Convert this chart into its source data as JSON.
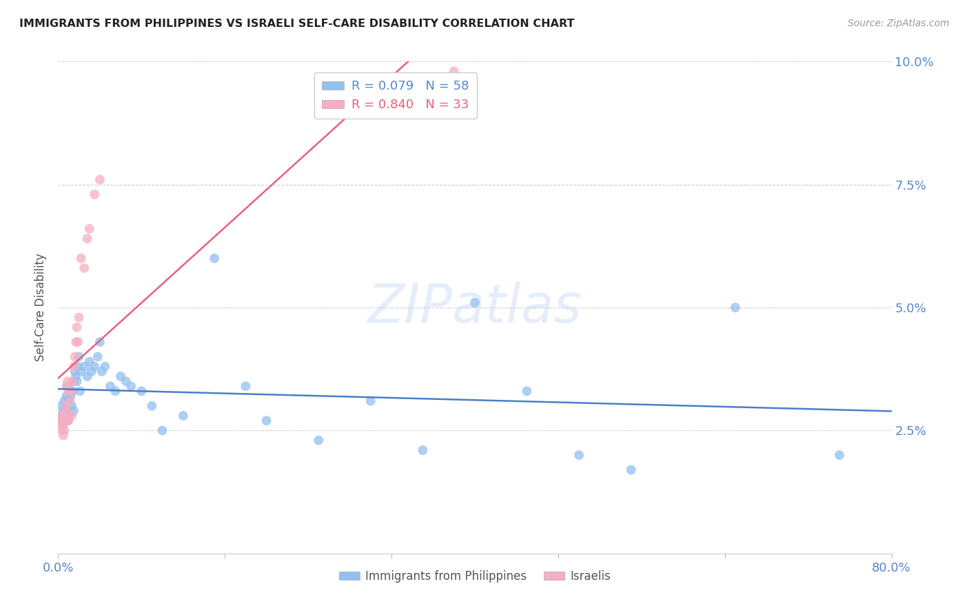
{
  "title": "IMMIGRANTS FROM PHILIPPINES VS ISRAELI SELF-CARE DISABILITY CORRELATION CHART",
  "source": "Source: ZipAtlas.com",
  "ylabel_label": "Self-Care Disability",
  "x_min": 0.0,
  "x_max": 0.8,
  "y_min": 0.0,
  "y_max": 0.1,
  "y_ticks": [
    0.0,
    0.025,
    0.05,
    0.075,
    0.1
  ],
  "x_ticks": [
    0.0,
    0.16,
    0.32,
    0.48,
    0.64,
    0.8
  ],
  "philippines_color": "#92c0f0",
  "israelis_color": "#f7aec0",
  "philippines_line_color": "#4a7ec8",
  "israelis_line_color": "#e8607a",
  "legend_philippines_r": "R = 0.079",
  "legend_philippines_n": "N = 58",
  "legend_israelis_r": "R = 0.840",
  "legend_israelis_n": "N = 33",
  "background_color": "#ffffff",
  "watermark": "ZIPatlas",
  "philippines_x": [
    0.002,
    0.003,
    0.004,
    0.005,
    0.005,
    0.006,
    0.006,
    0.007,
    0.007,
    0.008,
    0.008,
    0.009,
    0.009,
    0.01,
    0.01,
    0.011,
    0.012,
    0.013,
    0.014,
    0.015,
    0.015,
    0.016,
    0.017,
    0.018,
    0.019,
    0.02,
    0.021,
    0.022,
    0.025,
    0.028,
    0.03,
    0.032,
    0.035,
    0.038,
    0.04,
    0.042,
    0.045,
    0.05,
    0.055,
    0.06,
    0.065,
    0.07,
    0.08,
    0.09,
    0.1,
    0.12,
    0.15,
    0.18,
    0.2,
    0.25,
    0.3,
    0.35,
    0.4,
    0.45,
    0.5,
    0.55,
    0.65,
    0.75
  ],
  "philippines_y": [
    0.028,
    0.03,
    0.027,
    0.029,
    0.026,
    0.031,
    0.028,
    0.03,
    0.027,
    0.032,
    0.029,
    0.034,
    0.027,
    0.031,
    0.028,
    0.033,
    0.032,
    0.03,
    0.033,
    0.035,
    0.029,
    0.037,
    0.036,
    0.035,
    0.038,
    0.04,
    0.033,
    0.037,
    0.038,
    0.036,
    0.039,
    0.037,
    0.038,
    0.04,
    0.043,
    0.037,
    0.038,
    0.034,
    0.033,
    0.036,
    0.035,
    0.034,
    0.033,
    0.03,
    0.025,
    0.028,
    0.06,
    0.034,
    0.027,
    0.023,
    0.031,
    0.021,
    0.051,
    0.033,
    0.02,
    0.017,
    0.05,
    0.02
  ],
  "israelis_x": [
    0.002,
    0.003,
    0.003,
    0.004,
    0.005,
    0.005,
    0.006,
    0.006,
    0.007,
    0.007,
    0.008,
    0.008,
    0.009,
    0.009,
    0.01,
    0.01,
    0.011,
    0.012,
    0.013,
    0.014,
    0.015,
    0.016,
    0.017,
    0.018,
    0.019,
    0.02,
    0.022,
    0.025,
    0.028,
    0.03,
    0.035,
    0.04,
    0.38
  ],
  "israelis_y": [
    0.027,
    0.025,
    0.028,
    0.026,
    0.024,
    0.027,
    0.028,
    0.025,
    0.03,
    0.027,
    0.034,
    0.029,
    0.035,
    0.027,
    0.033,
    0.027,
    0.031,
    0.033,
    0.028,
    0.035,
    0.038,
    0.04,
    0.043,
    0.046,
    0.043,
    0.048,
    0.06,
    0.058,
    0.064,
    0.066,
    0.073,
    0.076,
    0.098
  ]
}
